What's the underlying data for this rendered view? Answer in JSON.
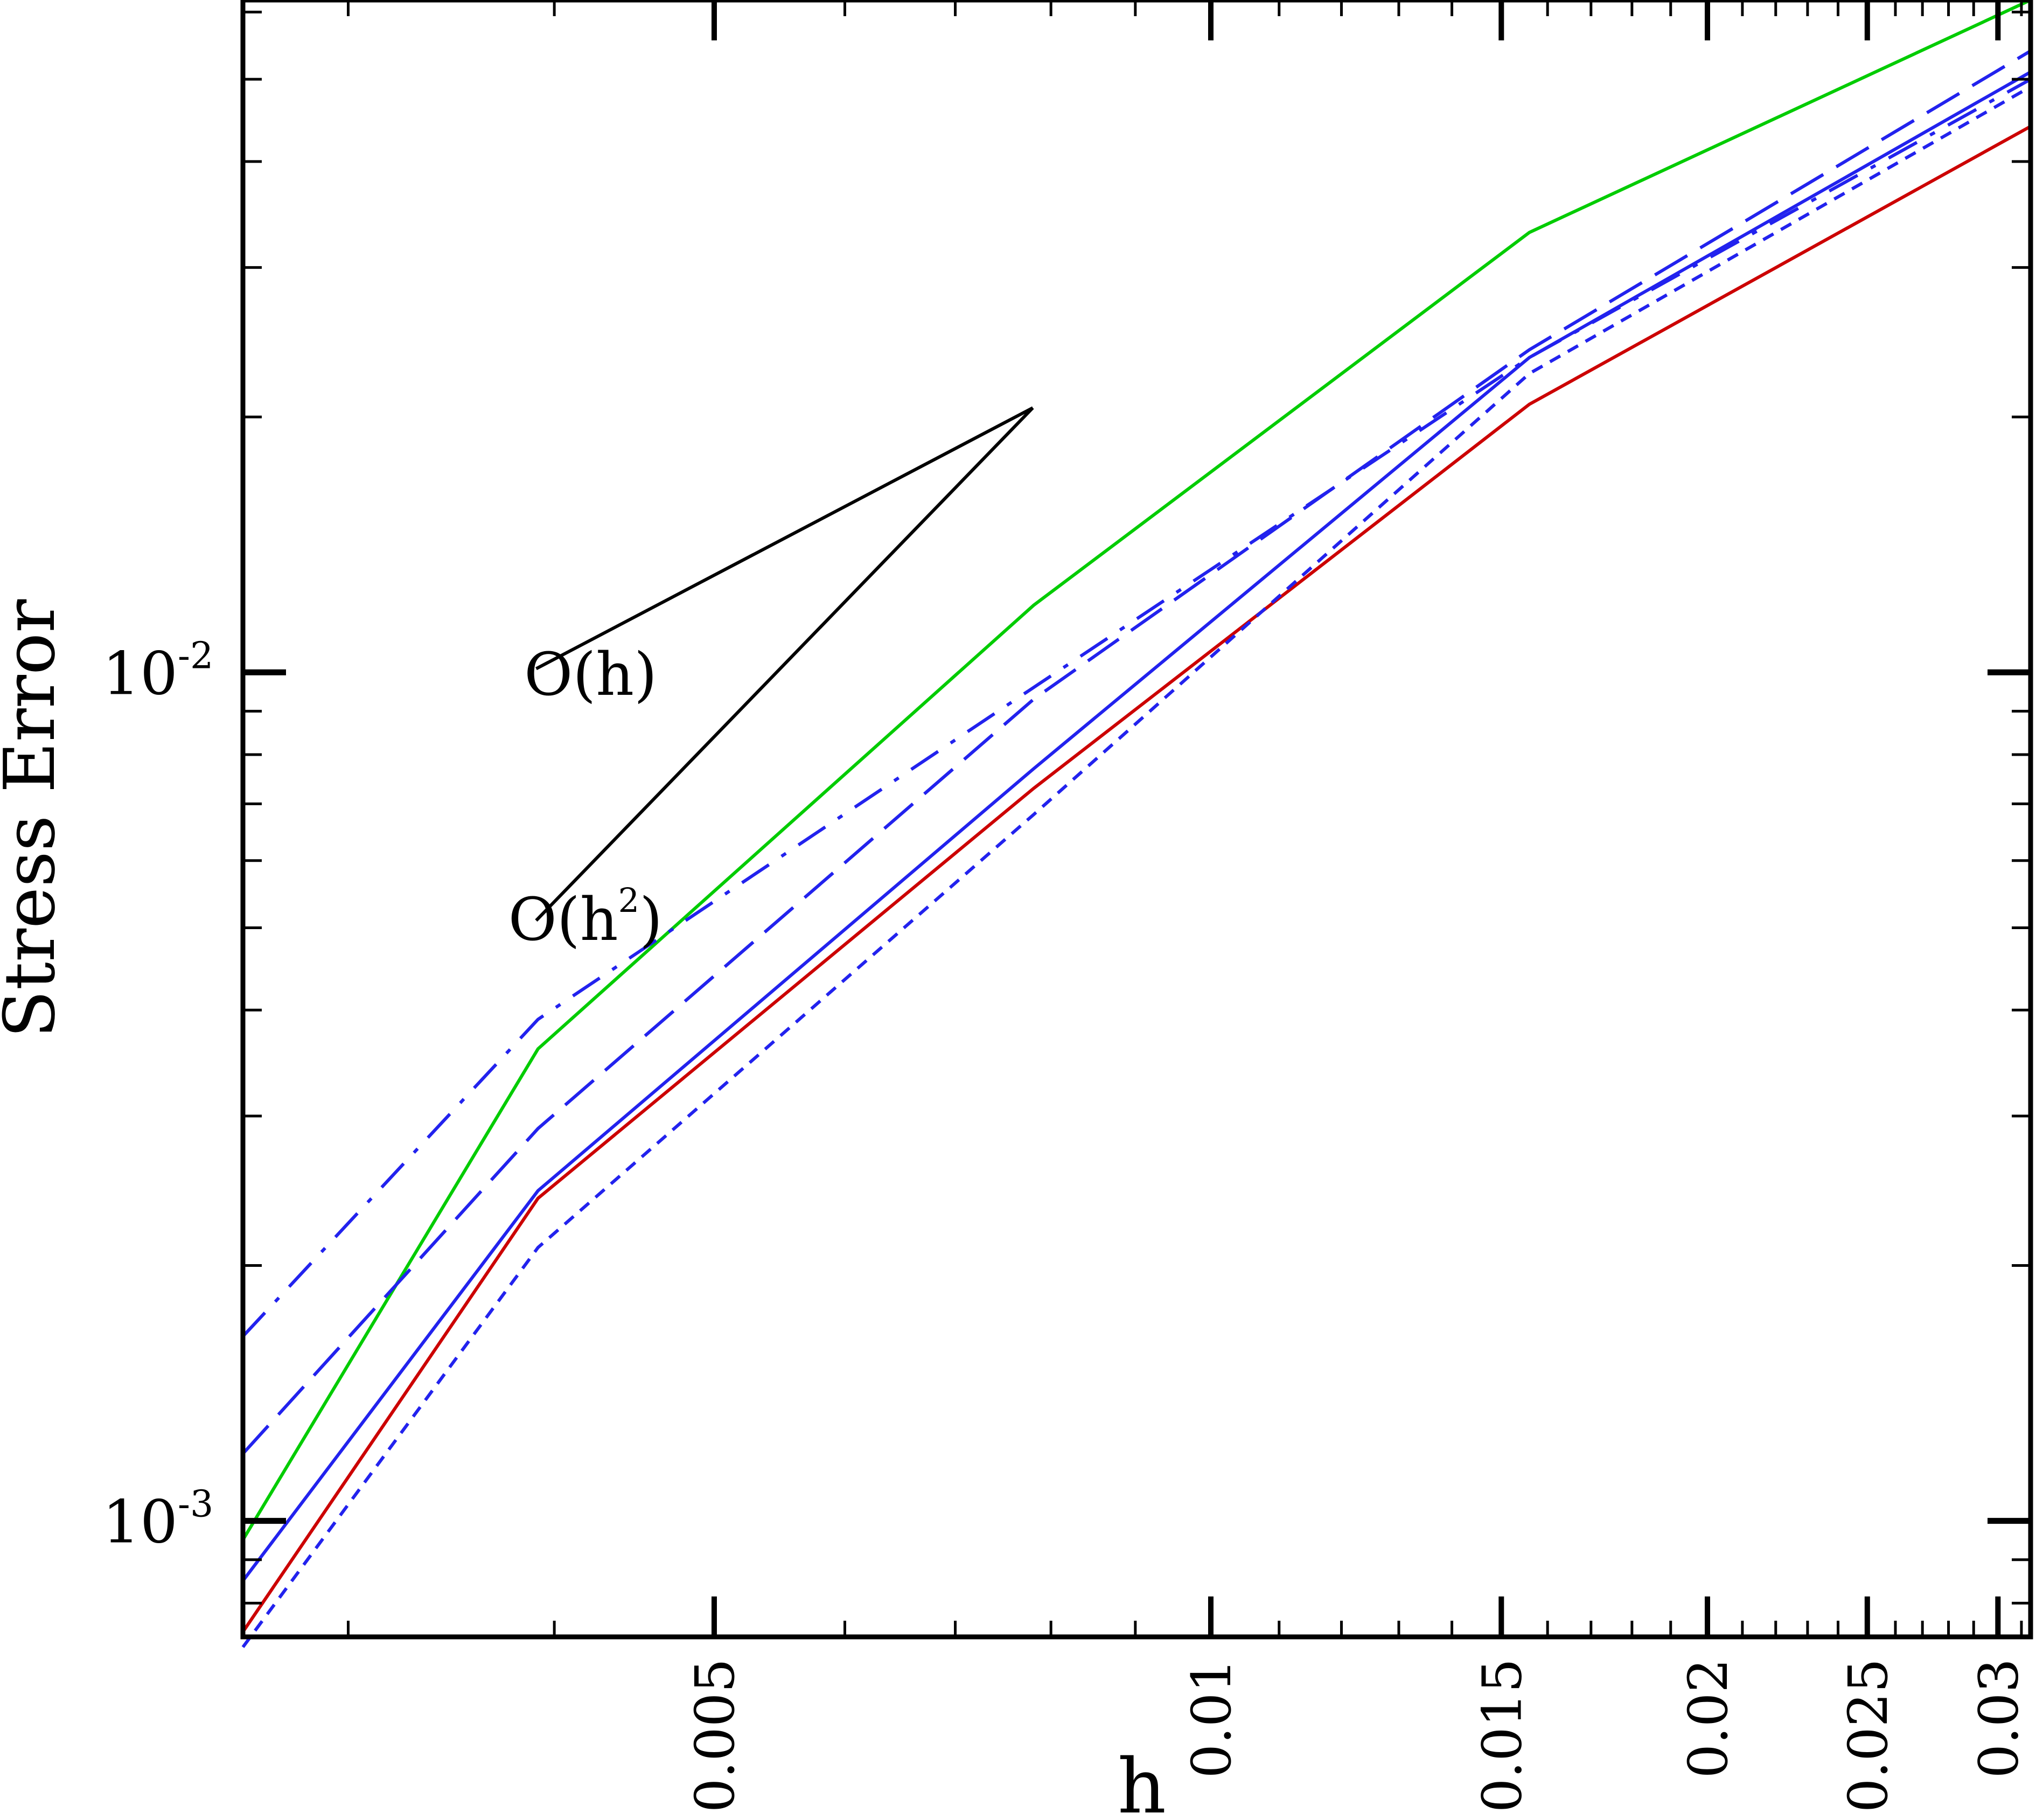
{
  "chart_data": {
    "type": "line",
    "xlabel": "h",
    "ylabel": "Stress Error",
    "xscale": "log",
    "yscale": "log",
    "xlim": [
      0.00259,
      0.0314
    ],
    "ylim": [
      0.00073,
      0.062
    ],
    "x_ticks": [
      {
        "value": 0.005,
        "label": "0.005"
      },
      {
        "value": 0.01,
        "label": "0.01"
      },
      {
        "value": 0.015,
        "label": "0.015"
      },
      {
        "value": 0.02,
        "label": "0.02"
      },
      {
        "value": 0.025,
        "label": "0.025"
      },
      {
        "value": 0.03,
        "label": "0.03"
      }
    ],
    "y_ticks": [
      {
        "value": 0.001,
        "base": "10",
        "exp": "-3"
      },
      {
        "value": 0.01,
        "base": "10",
        "exp": "-2"
      }
    ],
    "grid": false,
    "legend": "none",
    "series": [
      {
        "color": "#00cc00",
        "dash": "solid",
        "points": [
          [
            0.00259,
            0.00095
          ],
          [
            0.00391,
            0.0036
          ],
          [
            0.00781,
            0.012
          ],
          [
            0.0156,
            0.033
          ],
          [
            0.0314,
            0.062
          ]
        ]
      },
      {
        "color": "#cc0000",
        "dash": "solid",
        "points": [
          [
            0.00259,
            0.00074
          ],
          [
            0.00391,
            0.0024
          ],
          [
            0.00781,
            0.0073
          ],
          [
            0.0156,
            0.0207
          ],
          [
            0.0314,
            0.044
          ]
        ]
      },
      {
        "color": "#2222ee",
        "dash": "solid",
        "points": [
          [
            0.00259,
            0.00085
          ],
          [
            0.00391,
            0.00245
          ],
          [
            0.00781,
            0.0077
          ],
          [
            0.0156,
            0.0235
          ],
          [
            0.0314,
            0.051
          ]
        ]
      },
      {
        "color": "#2222ee",
        "dash": "dash",
        "points": [
          [
            0.00259,
            0.0012
          ],
          [
            0.00391,
            0.0029
          ],
          [
            0.00781,
            0.0093
          ],
          [
            0.0156,
            0.024
          ],
          [
            0.0314,
            0.054
          ]
        ]
      },
      {
        "color": "#2222ee",
        "dash": "dashdot",
        "points": [
          [
            0.00259,
            0.00165
          ],
          [
            0.00391,
            0.0039
          ],
          [
            0.00781,
            0.0096
          ],
          [
            0.0156,
            0.0235
          ],
          [
            0.0314,
            0.05
          ]
        ]
      },
      {
        "color": "#2222ee",
        "dash": "dot",
        "points": [
          [
            0.00259,
            0.00071
          ],
          [
            0.00391,
            0.0021
          ],
          [
            0.00781,
            0.0068
          ],
          [
            0.0156,
            0.0225
          ],
          [
            0.0314,
            0.049
          ]
        ]
      }
    ],
    "slope_triangle": {
      "color": "#000000",
      "apex": [
        0.0078,
        0.0205
      ],
      "first_order_end": [
        0.0039,
        0.0101
      ],
      "second_order_end": [
        0.0039,
        0.0051
      ]
    },
    "annotations": [
      {
        "id": "first-order",
        "base": "O(h)",
        "sup": "",
        "close": ""
      },
      {
        "id": "second-order",
        "base": "O(h",
        "sup": "2",
        "close": ")"
      }
    ]
  }
}
